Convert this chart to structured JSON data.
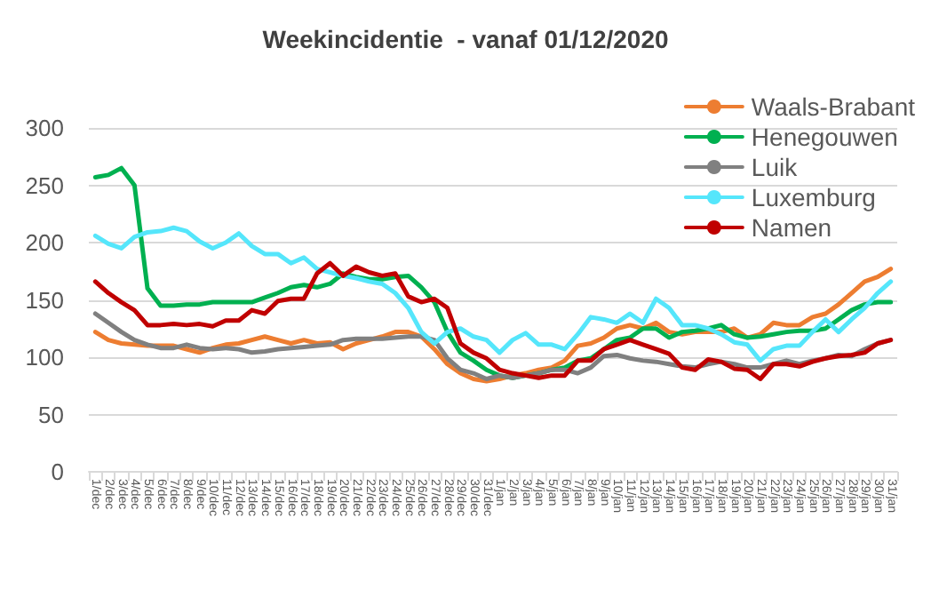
{
  "chart_data": {
    "type": "line",
    "title": "Weekincidentie  - vanaf 01/12/2020",
    "categories": [
      "1/dec",
      "2/dec",
      "3/dec",
      "4/dec",
      "5/dec",
      "6/dec",
      "7/dec",
      "8/dec",
      "9/dec",
      "10/dec",
      "11/dec",
      "12/dec",
      "13/dec",
      "14/dec",
      "15/dec",
      "16/dec",
      "17/dec",
      "18/dec",
      "19/dec",
      "20/dec",
      "21/dec",
      "22/dec",
      "23/dec",
      "24/dec",
      "25/dec",
      "26/dec",
      "27/dec",
      "28/dec",
      "29/dec",
      "30/dec",
      "31/dec",
      "1/jan",
      "2/jan",
      "3/jan",
      "4/jan",
      "5/jan",
      "6/jan",
      "7/jan",
      "8/jan",
      "9/jan",
      "10/jan",
      "11/jan",
      "12/jan",
      "13/jan",
      "14/jan",
      "15/jan",
      "16/jan",
      "17/jan",
      "18/jan",
      "19/jan",
      "20/jan",
      "21/jan",
      "22/jan",
      "23/jan",
      "24/jan",
      "25/jan",
      "26/jan",
      "27/jan",
      "28/jan",
      "29/jan",
      "30/jan",
      "31/jan"
    ],
    "series": [
      {
        "name": "Waals-Brabant",
        "color": "#ed7d31",
        "values": [
          122,
          115,
          112,
          111,
          110,
          110,
          110,
          107,
          104,
          108,
          111,
          112,
          115,
          118,
          115,
          112,
          115,
          112,
          113,
          107,
          112,
          115,
          118,
          122,
          122,
          118,
          107,
          94,
          86,
          81,
          79,
          81,
          84,
          86,
          89,
          91,
          97,
          110,
          112,
          117,
          125,
          128,
          125,
          130,
          122,
          120,
          122,
          122,
          122,
          125,
          117,
          120,
          130,
          128,
          128,
          135,
          138,
          146,
          156,
          166,
          170,
          177
        ]
      },
      {
        "name": "Henegouwen",
        "color": "#00b050",
        "values": [
          257,
          259,
          265,
          250,
          160,
          145,
          145,
          146,
          146,
          148,
          148,
          148,
          148,
          152,
          156,
          161,
          163,
          161,
          164,
          173,
          170,
          168,
          168,
          170,
          171,
          161,
          148,
          122,
          104,
          97,
          89,
          84,
          82,
          84,
          86,
          89,
          91,
          97,
          99,
          107,
          115,
          117,
          125,
          125,
          117,
          122,
          123,
          125,
          128,
          120,
          117,
          118,
          120,
          122,
          123,
          123,
          125,
          133,
          141,
          146,
          148,
          148
        ]
      },
      {
        "name": "Luik",
        "color": "#808080",
        "values": [
          138,
          130,
          122,
          115,
          111,
          108,
          108,
          111,
          108,
          107,
          108,
          107,
          104,
          105,
          107,
          108,
          109,
          110,
          111,
          115,
          116,
          116,
          116,
          117,
          118,
          118,
          115,
          99,
          89,
          86,
          81,
          84,
          82,
          84,
          86,
          89,
          89,
          86,
          91,
          101,
          102,
          99,
          97,
          96,
          94,
          92,
          91,
          94,
          96,
          94,
          91,
          91,
          94,
          97,
          94,
          97,
          99,
          102,
          101,
          107,
          112,
          115
        ]
      },
      {
        "name": "Luxemburg",
        "color": "#55e6fb",
        "values": [
          206,
          199,
          195,
          205,
          209,
          210,
          213,
          210,
          201,
          195,
          200,
          208,
          197,
          190,
          190,
          182,
          187,
          177,
          174,
          171,
          169,
          166,
          164,
          156,
          143,
          122,
          112,
          122,
          125,
          118,
          115,
          104,
          115,
          121,
          111,
          111,
          107,
          120,
          135,
          133,
          130,
          138,
          130,
          151,
          143,
          128,
          128,
          125,
          120,
          113,
          111,
          97,
          107,
          110,
          110,
          122,
          133,
          122,
          133,
          143,
          156,
          166
        ]
      },
      {
        "name": "Namen",
        "color": "#c00000",
        "values": [
          166,
          156,
          148,
          141,
          128,
          128,
          129,
          128,
          129,
          127,
          132,
          132,
          141,
          138,
          149,
          151,
          151,
          173,
          182,
          171,
          179,
          174,
          171,
          173,
          153,
          148,
          151,
          143,
          112,
          104,
          99,
          89,
          86,
          84,
          82,
          84,
          84,
          97,
          97,
          107,
          111,
          115,
          111,
          107,
          103,
          91,
          89,
          98,
          96,
          90,
          89,
          81,
          94,
          94,
          92,
          96,
          99,
          101,
          102,
          104,
          112,
          115
        ]
      }
    ],
    "ylim": [
      0,
      300
    ],
    "yticks": [
      0,
      50,
      100,
      150,
      200,
      250,
      300
    ],
    "grid": "y",
    "legend": "top right",
    "marker": "none",
    "line_style": "solid"
  }
}
